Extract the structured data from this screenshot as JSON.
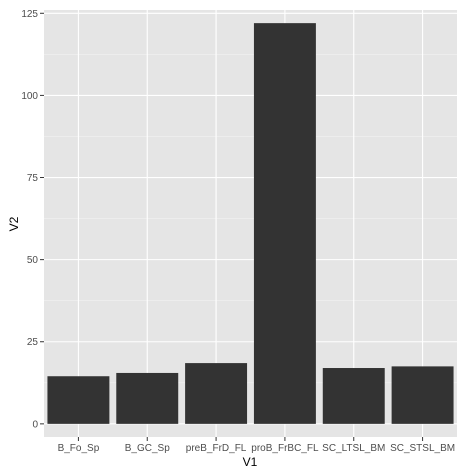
{
  "chart_data": {
    "type": "bar",
    "categories": [
      "B_Fo_Sp",
      "B_GC_Sp",
      "preB_FrD_FL",
      "proB_FrBC_FL",
      "SC_LTSL_BM",
      "SC_STSL_BM"
    ],
    "values": [
      14.5,
      15.5,
      18.5,
      122,
      17,
      17.5
    ],
    "title": "",
    "xlabel": "V1",
    "ylabel": "V2",
    "ylim": [
      -4,
      126
    ],
    "yticks": [
      0,
      25,
      50,
      75,
      100,
      125
    ],
    "grid": true,
    "legend": "none",
    "colors": {
      "bar": "#333333",
      "panel": "#e5e5e5",
      "grid_major": "#ffffff",
      "grid_minor": "#f2f2f2",
      "tick_text": "#4d4d4d"
    }
  }
}
